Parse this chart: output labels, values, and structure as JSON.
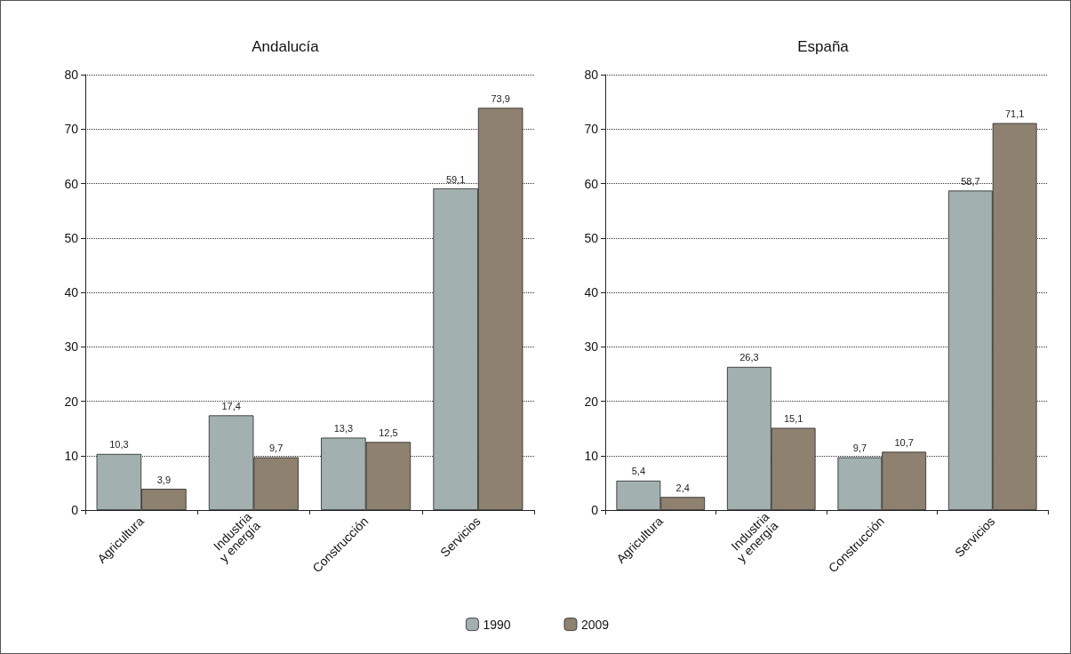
{
  "chart_data": [
    {
      "type": "bar",
      "title": "Andalucía",
      "categories": [
        "Agricultura",
        "Industria\ny energía",
        "Construcción",
        "Servicios"
      ],
      "series": [
        {
          "name": "1990",
          "color": "#a3b0b0",
          "values": [
            10.3,
            17.4,
            13.3,
            59.1
          ],
          "value_labels": [
            "10,3",
            "17,4",
            "13,3",
            "59,1"
          ]
        },
        {
          "name": "2009",
          "color": "#8e8170",
          "values": [
            3.9,
            9.7,
            12.5,
            73.9
          ],
          "value_labels": [
            "3,9",
            "9,7",
            "12,5",
            "73,9"
          ]
        }
      ],
      "ylim": [
        0,
        80
      ],
      "yticks": [
        0,
        10,
        20,
        30,
        40,
        50,
        60,
        70,
        80
      ],
      "grid": "y",
      "legend": "bottom"
    },
    {
      "type": "bar",
      "title": "España",
      "categories": [
        "Agricultura",
        "Industria\ny energía",
        "Construcción",
        "Servicios"
      ],
      "series": [
        {
          "name": "1990",
          "color": "#a3b0b0",
          "values": [
            5.4,
            26.3,
            9.7,
            58.7
          ],
          "value_labels": [
            "5,4",
            "26,3",
            "9,7",
            "58,7"
          ]
        },
        {
          "name": "2009",
          "color": "#8e8170",
          "values": [
            2.4,
            15.1,
            10.7,
            71.1
          ],
          "value_labels": [
            "2,4",
            "15,1",
            "10,7",
            "71,1"
          ]
        }
      ],
      "ylim": [
        0,
        80
      ],
      "yticks": [
        0,
        10,
        20,
        30,
        40,
        50,
        60,
        70,
        80
      ],
      "grid": "y"
    }
  ]
}
